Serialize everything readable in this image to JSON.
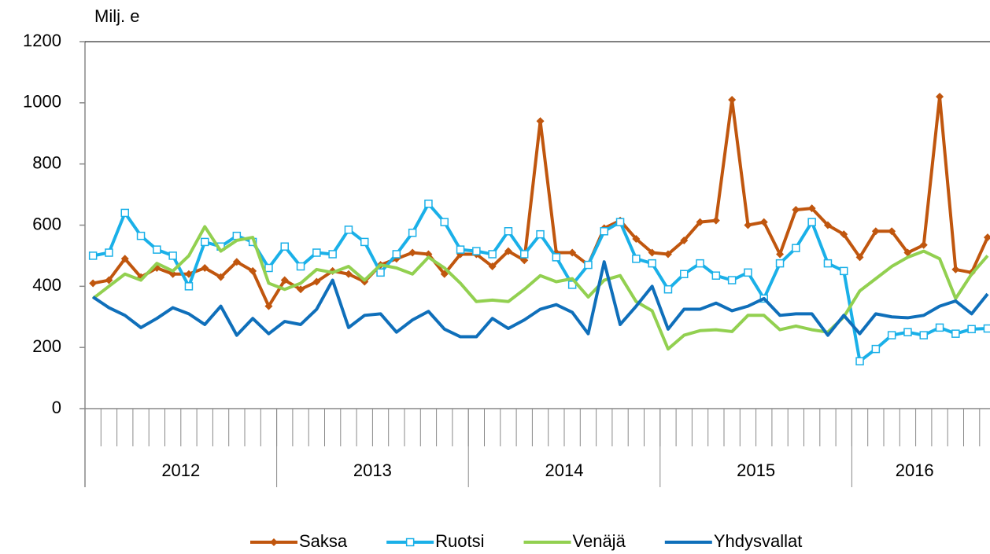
{
  "chart_data": {
    "type": "line",
    "y_label": "Milj. e",
    "categories": [
      null,
      null,
      null,
      null,
      null,
      null,
      null,
      null,
      null,
      null,
      null,
      null,
      null,
      null,
      null,
      null,
      null,
      null,
      null,
      null,
      null,
      null,
      null,
      null,
      null,
      null,
      null,
      null,
      null,
      null,
      null,
      null,
      null,
      null,
      null,
      null,
      null,
      null,
      null,
      null,
      null,
      null,
      null,
      null,
      null,
      null,
      null,
      null,
      null,
      null,
      null,
      null,
      null,
      null,
      null,
      null,
      null
    ],
    "x_groups": [
      {
        "label": "2012",
        "count": 12
      },
      {
        "label": "2013",
        "count": 12
      },
      {
        "label": "2014",
        "count": 12
      },
      {
        "label": "2015",
        "count": 12
      },
      {
        "label": "2016",
        "count": 9
      }
    ],
    "ylim": [
      0,
      1200
    ],
    "yticks": [
      0,
      200,
      400,
      600,
      800,
      1000,
      1200
    ],
    "grid": false,
    "legend": "bottom",
    "series": [
      {
        "name": "Saksa",
        "color": "#c0560e",
        "marker": "diamond",
        "values": [
          410,
          420,
          490,
          430,
          460,
          440,
          440,
          460,
          430,
          480,
          450,
          335,
          420,
          390,
          415,
          450,
          440,
          415,
          470,
          490,
          510,
          505,
          440,
          505,
          505,
          465,
          515,
          485,
          940,
          510,
          510,
          470,
          590,
          615,
          555,
          510,
          505,
          550,
          610,
          615,
          1010,
          600,
          610,
          505,
          650,
          655,
          600,
          570,
          495,
          580,
          580,
          510,
          535,
          1020,
          455,
          445,
          560
        ]
      },
      {
        "name": "Ruotsi",
        "color": "#1ab0e8",
        "marker": "square",
        "values": [
          500,
          510,
          640,
          565,
          520,
          500,
          400,
          545,
          530,
          565,
          545,
          460,
          530,
          465,
          510,
          505,
          585,
          545,
          445,
          505,
          575,
          670,
          610,
          520,
          515,
          505,
          580,
          505,
          570,
          495,
          405,
          470,
          580,
          610,
          490,
          475,
          390,
          440,
          475,
          435,
          420,
          445,
          360,
          475,
          525,
          610,
          475,
          450,
          155,
          195,
          240,
          250,
          240,
          265,
          245,
          260,
          262
        ]
      },
      {
        "name": "Venäjä",
        "color": "#92d050",
        "marker": "none",
        "values": [
          360,
          400,
          440,
          420,
          475,
          450,
          500,
          595,
          515,
          550,
          560,
          410,
          390,
          410,
          455,
          445,
          465,
          420,
          470,
          460,
          440,
          495,
          460,
          410,
          350,
          355,
          350,
          390,
          435,
          415,
          425,
          365,
          420,
          435,
          350,
          320,
          195,
          240,
          255,
          258,
          252,
          305,
          305,
          258,
          270,
          258,
          250,
          300,
          385,
          425,
          465,
          495,
          515,
          490,
          360,
          440,
          500
        ]
      },
      {
        "name": "Yhdysvallat",
        "color": "#0f6fba",
        "marker": "none",
        "values": [
          365,
          330,
          305,
          265,
          295,
          330,
          310,
          275,
          335,
          240,
          295,
          245,
          285,
          275,
          325,
          420,
          265,
          305,
          310,
          250,
          290,
          318,
          260,
          235,
          235,
          295,
          262,
          290,
          325,
          340,
          315,
          245,
          480,
          275,
          335,
          400,
          260,
          325,
          325,
          345,
          320,
          335,
          360,
          305,
          310,
          310,
          240,
          305,
          245,
          310,
          300,
          297,
          305,
          335,
          352,
          310,
          375
        ]
      }
    ]
  }
}
